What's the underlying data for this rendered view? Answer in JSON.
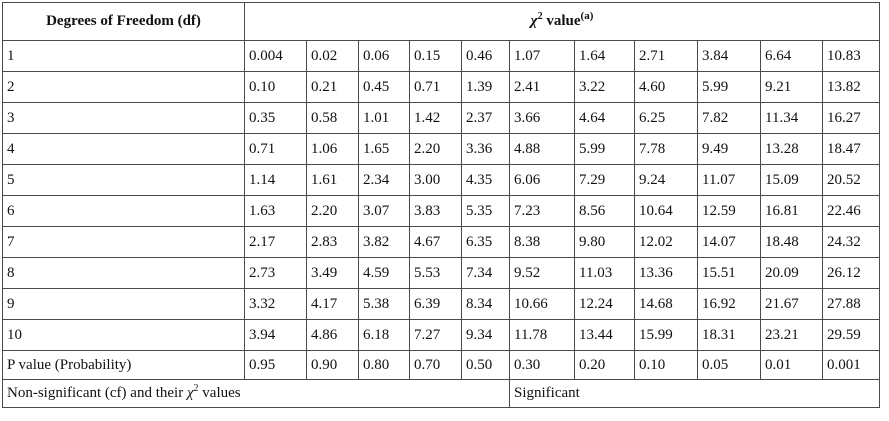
{
  "table": {
    "df_header": "Degrees of Freedom (df)",
    "value_header": {
      "symbol": "χ",
      "power": "2",
      "text": " value",
      "note": "(a)"
    },
    "rows": [
      {
        "df": "1",
        "values": [
          "0.004",
          "0.02",
          "0.06",
          "0.15",
          "0.46",
          "1.07",
          "1.64",
          "2.71",
          "3.84",
          "6.64",
          "10.83"
        ]
      },
      {
        "df": "2",
        "values": [
          "0.10",
          "0.21",
          "0.45",
          "0.71",
          "1.39",
          "2.41",
          "3.22",
          "4.60",
          "5.99",
          "9.21",
          "13.82"
        ]
      },
      {
        "df": "3",
        "values": [
          "0.35",
          "0.58",
          "1.01",
          "1.42",
          "2.37",
          "3.66",
          "4.64",
          "6.25",
          "7.82",
          "11.34",
          "16.27"
        ]
      },
      {
        "df": "4",
        "values": [
          "0.71",
          "1.06",
          "1.65",
          "2.20",
          "3.36",
          "4.88",
          "5.99",
          "7.78",
          "9.49",
          "13.28",
          "18.47"
        ]
      },
      {
        "df": "5",
        "values": [
          "1.14",
          "1.61",
          "2.34",
          "3.00",
          "4.35",
          "6.06",
          "7.29",
          "9.24",
          "11.07",
          "15.09",
          "20.52"
        ]
      },
      {
        "df": "6",
        "values": [
          "1.63",
          "2.20",
          "3.07",
          "3.83",
          "5.35",
          "7.23",
          "8.56",
          "10.64",
          "12.59",
          "16.81",
          "22.46"
        ]
      },
      {
        "df": "7",
        "values": [
          "2.17",
          "2.83",
          "3.82",
          "4.67",
          "6.35",
          "8.38",
          "9.80",
          "12.02",
          "14.07",
          "18.48",
          "24.32"
        ]
      },
      {
        "df": "8",
        "values": [
          "2.73",
          "3.49",
          "4.59",
          "5.53",
          "7.34",
          "9.52",
          "11.03",
          "13.36",
          "15.51",
          "20.09",
          "26.12"
        ]
      },
      {
        "df": "9",
        "values": [
          "3.32",
          "4.17",
          "5.38",
          "6.39",
          "8.34",
          "10.66",
          "12.24",
          "14.68",
          "16.92",
          "21.67",
          "27.88"
        ]
      },
      {
        "df": "10",
        "values": [
          "3.94",
          "4.86",
          "6.18",
          "7.27",
          "9.34",
          "11.78",
          "13.44",
          "15.99",
          "18.31",
          "23.21",
          "29.59"
        ]
      }
    ],
    "p_value_row": {
      "label": "P value (Probability)",
      "values": [
        "0.95",
        "0.90",
        "0.80",
        "0.70",
        "0.50",
        "0.30",
        "0.20",
        "0.10",
        "0.05",
        "0.01",
        "0.001"
      ]
    },
    "notes_row": {
      "non_significant": {
        "text": "Non-significant (cf) and their ",
        "symbol": "χ",
        "power": "2",
        "tail": " values"
      },
      "significant": "Significant"
    }
  }
}
